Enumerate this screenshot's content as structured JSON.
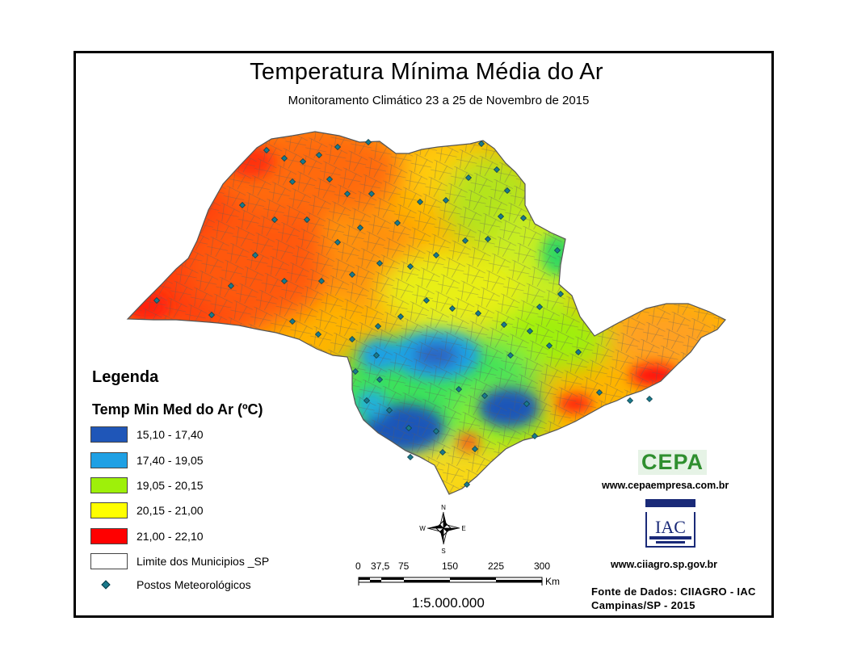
{
  "title": "Temperatura Mínima Média do Ar",
  "subtitle": "Monitoramento Climático 23 a 25 de Novembro de 2015",
  "legend": {
    "heading": "Legenda",
    "variable": "Temp Min Med do Ar (ºC)",
    "classes": [
      {
        "label": "15,10 - 17,40",
        "color": "#1f56b8"
      },
      {
        "label": "17,40 - 19,05",
        "color": "#1fa0e4"
      },
      {
        "label": "19,05 - 20,15",
        "color": "#9ef00a"
      },
      {
        "label": "20,15 - 21,00",
        "color": "#ffff00"
      },
      {
        "label": "21,00 - 22,10",
        "color": "#ff0000"
      }
    ],
    "municipal_boundary": "Limite dos Municipios _SP",
    "stations": "Postos Meteorológicos"
  },
  "compass": {
    "n": "N",
    "s": "S",
    "e": "E",
    "w": "W"
  },
  "scale_bar": {
    "ticks": [
      "0",
      "37,5",
      "75",
      "150",
      "225",
      "300"
    ],
    "unit": "Km",
    "ratio": "1:5.000.000"
  },
  "credits": {
    "cepa_logo": "CEPA",
    "cepa_url": "www.cepaempresa.com.br",
    "iac_logo": "IAC",
    "ciiagro_url": "www.ciiagro.sp.gov.br",
    "source_line1": "Fonte de Dados: CIIAGRO - IAC",
    "source_line2": "Campinas/SP - 2015"
  },
  "colors": {
    "station": "#1a7a8c",
    "frame": "#000000"
  }
}
